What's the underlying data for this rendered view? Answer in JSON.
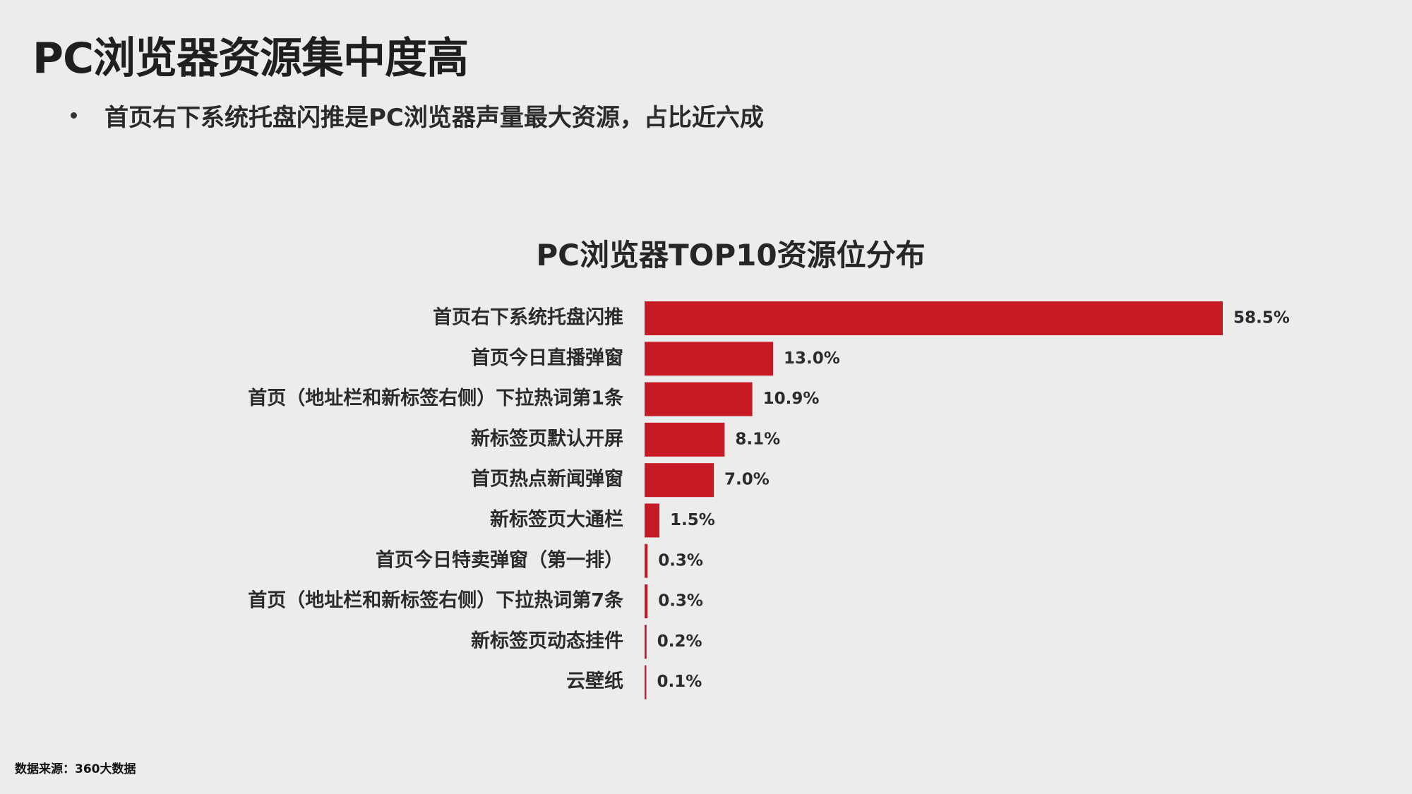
{
  "slide": {
    "title": "PC浏览器资源集中度高",
    "bullet": "首页右下系统托盘闪推是PC浏览器声量最大资源，占比近六成",
    "source": "数据来源：360大数据"
  },
  "colors": {
    "bar": "#c61b24",
    "background": "#ececec"
  },
  "chart_data": {
    "type": "bar",
    "orientation": "horizontal",
    "title": "PC浏览器TOP10资源位分布",
    "xlabel": "",
    "ylabel": "",
    "legend": "none",
    "grid": false,
    "xlim": [
      0,
      58.5
    ],
    "categories": [
      "首页右下系统托盘闪推",
      "首页今日直播弹窗",
      "首页（地址栏和新标签右侧）下拉热词第1条",
      "新标签页默认开屏",
      "首页热点新闻弹窗",
      "新标签页大通栏",
      "首页今日特卖弹窗（第一排）",
      "首页（地址栏和新标签右侧）下拉热词第7条",
      "新标签页动态挂件",
      "云壁纸"
    ],
    "values": [
      58.5,
      13.0,
      10.9,
      8.1,
      7.0,
      1.5,
      0.3,
      0.3,
      0.2,
      0.1
    ],
    "value_labels": [
      "58.5%",
      "13.0%",
      "10.9%",
      "8.1%",
      "7.0%",
      "1.5%",
      "0.3%",
      "0.3%",
      "0.2%",
      "0.1%"
    ]
  }
}
